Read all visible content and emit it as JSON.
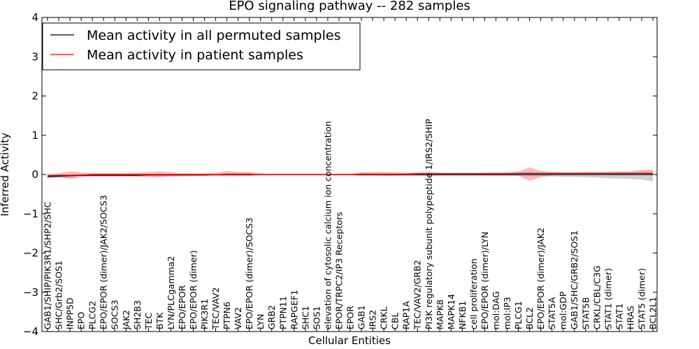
{
  "chart_data": {
    "type": "line",
    "title": "EPO signaling pathway -- 282 samples",
    "xlabel": "Cellular Entities",
    "ylabel": "Inferred Activity",
    "ylim": [
      -4,
      4
    ],
    "yticks": [
      -4,
      -3,
      -2,
      -1,
      0,
      1,
      2,
      3,
      4
    ],
    "grid": false,
    "legend_position": "top-left",
    "categories": [
      "GAB1/SHIP/PIK3R1/SHP2/SHC",
      "SHC/Grb2/SOS1",
      "INPP5D",
      "EPO",
      "PLCG2",
      "EPO/EPOR (dimer)/JAK2/SOCS3",
      "SOCS3",
      "JAK2",
      "SH2B3",
      "TEC",
      "BTK",
      "LYN/PLCgamma2",
      "EPO/EPOR",
      "EPO/EPOR (dimer)",
      "PIK3R1",
      "TEC/VAV2",
      "PTPN6",
      "VAV2",
      "EPO/EPOR (dimer)/SOCS3",
      "LYN",
      "GRB2",
      "PTPN11",
      "RAPGEF1",
      "SHC1",
      "SOS1",
      "elevation of cytosolic calcium ion concentration",
      "EPOR/TRPC2/IP3 Receptors",
      "EPOR",
      "GAB1",
      "IRS2",
      "CRKL",
      "CBL",
      "RAP1A",
      "TEC/VAV2/GRB2",
      "PI3K regulatory subunit polypeptide 1/IRS2/SHIP",
      "MAPK8",
      "MAPK14",
      "NFKB1",
      "cell proliferation",
      "EPO/EPOR (dimer)/LYN",
      "mol:DAG",
      "mol:IP3",
      "PLCG1",
      "BCL2",
      "EPO/EPOR (dimer)/JAK2",
      "STAT5A",
      "mol:GDP",
      "GAB1/SHC/GRB2/SOS1",
      "STAT5B",
      "CRKL/CBL/C3G",
      "STAT1 (dimer)",
      "STAT1",
      "HRAS",
      "STAT5 (dimer)",
      "BCL2L1"
    ],
    "series": [
      {
        "name": "Mean activity in all permuted samples",
        "color": "#000000",
        "values": [
          -0.05,
          -0.04,
          -0.03,
          -0.02,
          -0.02,
          -0.02,
          -0.02,
          -0.02,
          -0.02,
          -0.01,
          -0.01,
          -0.01,
          -0.01,
          -0.01,
          -0.01,
          0.0,
          0.0,
          0.0,
          0.0,
          0.0,
          0.0,
          0.0,
          0.0,
          0.0,
          0.0,
          0.0,
          0.0,
          0.0,
          0.0,
          0.0,
          0.0,
          0.0,
          0.0,
          0.0,
          0.0,
          0.0,
          0.0,
          0.0,
          0.0,
          0.0,
          0.0,
          0.0,
          0.0,
          0.0,
          0.0,
          0.0,
          0.0,
          0.0,
          0.0,
          0.0,
          0.0,
          0.0,
          0.0,
          0.0,
          0.0
        ],
        "band_lower": [
          -0.1,
          -0.08,
          -0.08,
          -0.06,
          -0.06,
          -0.06,
          -0.06,
          -0.06,
          -0.06,
          -0.05,
          -0.05,
          -0.05,
          -0.05,
          -0.04,
          -0.04,
          -0.04,
          -0.03,
          -0.03,
          -0.03,
          -0.02,
          -0.02,
          -0.02,
          -0.02,
          -0.02,
          -0.02,
          -0.02,
          -0.02,
          -0.02,
          -0.03,
          -0.03,
          -0.04,
          -0.04,
          -0.04,
          -0.04,
          -0.04,
          -0.04,
          -0.04,
          -0.04,
          -0.04,
          -0.04,
          -0.04,
          -0.04,
          -0.04,
          -0.05,
          -0.05,
          -0.05,
          -0.06,
          -0.06,
          -0.07,
          -0.08,
          -0.09,
          -0.1,
          -0.11,
          -0.13,
          -0.18
        ],
        "band_upper": [
          0.0,
          0.0,
          0.0,
          0.0,
          0.0,
          0.0,
          0.0,
          0.0,
          0.0,
          0.01,
          0.01,
          0.01,
          0.01,
          0.01,
          0.01,
          0.02,
          0.02,
          0.02,
          0.02,
          0.02,
          0.02,
          0.02,
          0.02,
          0.02,
          0.02,
          0.02,
          0.02,
          0.02,
          0.02,
          0.02,
          0.02,
          0.02,
          0.02,
          0.02,
          0.02,
          0.02,
          0.02,
          0.02,
          0.02,
          0.02,
          0.02,
          0.02,
          0.02,
          0.03,
          0.03,
          0.03,
          0.03,
          0.03,
          0.04,
          0.05,
          0.05,
          0.06,
          0.06,
          0.07,
          0.08
        ],
        "band_color": "#bbbbbb"
      },
      {
        "name": "Mean activity in patient samples",
        "color": "#ff0000",
        "values": [
          -0.03,
          -0.02,
          -0.02,
          -0.01,
          0.0,
          0.0,
          0.0,
          0.0,
          0.0,
          0.0,
          0.0,
          0.0,
          0.0,
          0.0,
          0.0,
          0.0,
          0.01,
          0.01,
          0.01,
          0.0,
          0.0,
          0.0,
          0.0,
          0.0,
          0.0,
          0.0,
          0.0,
          0.0,
          0.01,
          0.01,
          0.01,
          0.01,
          0.01,
          0.02,
          0.02,
          0.02,
          0.02,
          0.02,
          0.02,
          0.02,
          0.02,
          0.02,
          0.03,
          0.03,
          0.03,
          0.03,
          0.03,
          0.03,
          0.03,
          0.03,
          0.03,
          0.03,
          0.03,
          0.03,
          0.03
        ],
        "band_lower": [
          -0.08,
          -0.07,
          -0.11,
          -0.07,
          -0.04,
          -0.04,
          -0.04,
          -0.04,
          -0.05,
          -0.06,
          -0.07,
          -0.05,
          -0.03,
          -0.03,
          -0.03,
          -0.03,
          -0.05,
          -0.04,
          -0.04,
          -0.02,
          -0.01,
          -0.01,
          -0.01,
          -0.01,
          -0.01,
          -0.01,
          -0.01,
          -0.01,
          -0.03,
          -0.03,
          -0.03,
          -0.03,
          -0.02,
          -0.02,
          -0.03,
          -0.01,
          -0.01,
          -0.01,
          -0.01,
          -0.02,
          -0.01,
          -0.02,
          -0.03,
          -0.16,
          -0.07,
          -0.02,
          -0.01,
          -0.01,
          -0.01,
          -0.01,
          -0.01,
          -0.01,
          -0.01,
          -0.01,
          -0.02
        ],
        "band_upper": [
          0.02,
          0.03,
          0.08,
          0.05,
          0.04,
          0.04,
          0.04,
          0.04,
          0.05,
          0.06,
          0.08,
          0.06,
          0.03,
          0.03,
          0.03,
          0.04,
          0.09,
          0.07,
          0.06,
          0.03,
          0.01,
          0.01,
          0.01,
          0.01,
          0.01,
          0.01,
          0.01,
          0.01,
          0.06,
          0.06,
          0.06,
          0.06,
          0.05,
          0.06,
          0.08,
          0.05,
          0.05,
          0.05,
          0.05,
          0.06,
          0.06,
          0.07,
          0.08,
          0.18,
          0.09,
          0.07,
          0.06,
          0.06,
          0.07,
          0.07,
          0.07,
          0.08,
          0.08,
          0.12,
          0.13
        ],
        "band_color": "#ff8080"
      }
    ]
  }
}
